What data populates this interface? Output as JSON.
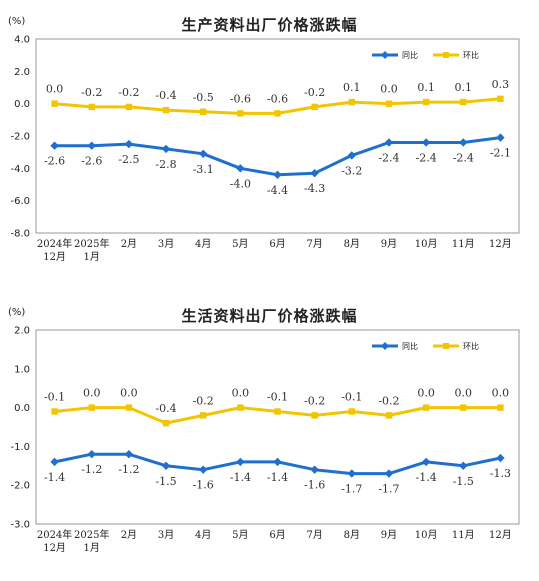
{
  "chart_data": [
    {
      "type": "line",
      "title": "生产资料出厂价格涨跌幅",
      "ylabel": "(%)",
      "ylim": [
        -8.0,
        4.0
      ],
      "yticks": [
        "4.0",
        "2.0",
        "0.0",
        "-2.0",
        "-4.0",
        "-6.0",
        "-8.0"
      ],
      "grid": false,
      "legend_position": "top-right",
      "categories": [
        [
          "2024年",
          "12月"
        ],
        [
          "2025年",
          "1月"
        ],
        [
          "2月"
        ],
        [
          "3月"
        ],
        [
          "4月"
        ],
        [
          "5月"
        ],
        [
          "6月"
        ],
        [
          "7月"
        ],
        [
          "8月"
        ],
        [
          "9月"
        ],
        [
          "10月"
        ],
        [
          "11月"
        ],
        [
          "12月"
        ]
      ],
      "series": [
        {
          "name": "同比",
          "color": "#1F6FCF",
          "marker": "diamond",
          "values": [
            -2.6,
            -2.6,
            -2.5,
            -2.8,
            -3.1,
            -4.0,
            -4.4,
            -4.3,
            -3.2,
            -2.4,
            -2.4,
            -2.4,
            -2.1
          ],
          "labels": [
            "-2.6",
            "-2.6",
            "-2.5",
            "-2.8",
            "-3.1",
            "-4.0",
            "-4.4",
            "-4.3",
            "-3.2",
            "-2.4",
            "-2.4",
            "-2.4",
            "-2.1"
          ]
        },
        {
          "name": "环比",
          "color": "#F2C500",
          "marker": "square",
          "values": [
            0.0,
            -0.2,
            -0.2,
            -0.4,
            -0.5,
            -0.6,
            -0.6,
            -0.2,
            0.1,
            0.0,
            0.1,
            0.1,
            0.3
          ],
          "labels": [
            "0.0",
            "-0.2",
            "-0.2",
            "-0.4",
            "-0.5",
            "-0.6",
            "-0.6",
            "-0.2",
            "0.1",
            "0.0",
            "0.1",
            "0.1",
            "0.3"
          ]
        }
      ]
    },
    {
      "type": "line",
      "title": "生活资料出厂价格涨跌幅",
      "ylabel": "(%)",
      "ylim": [
        -3.0,
        2.0
      ],
      "yticks": [
        "2.0",
        "1.0",
        "0.0",
        "-1.0",
        "-2.0",
        "-3.0"
      ],
      "grid": false,
      "legend_position": "top-right",
      "categories": [
        [
          "2024年",
          "12月"
        ],
        [
          "2025年",
          "1月"
        ],
        [
          "2月"
        ],
        [
          "3月"
        ],
        [
          "4月"
        ],
        [
          "5月"
        ],
        [
          "6月"
        ],
        [
          "7月"
        ],
        [
          "8月"
        ],
        [
          "9月"
        ],
        [
          "10月"
        ],
        [
          "11月"
        ],
        [
          "12月"
        ]
      ],
      "series": [
        {
          "name": "同比",
          "color": "#1F6FCF",
          "marker": "diamond",
          "values": [
            -1.4,
            -1.2,
            -1.2,
            -1.5,
            -1.6,
            -1.4,
            -1.4,
            -1.6,
            -1.7,
            -1.7,
            -1.4,
            -1.5,
            -1.3
          ],
          "labels": [
            "-1.4",
            "-1.2",
            "-1.2",
            "-1.5",
            "-1.6",
            "-1.4",
            "-1.4",
            "-1.6",
            "-1.7",
            "-1.7",
            "-1.4",
            "-1.5",
            "-1.3"
          ]
        },
        {
          "name": "环比",
          "color": "#F2C500",
          "marker": "square",
          "values": [
            -0.1,
            0.0,
            0.0,
            -0.4,
            -0.2,
            0.0,
            -0.1,
            -0.2,
            -0.1,
            -0.2,
            0.0,
            0.0,
            0.0
          ],
          "labels": [
            "-0.1",
            "0.0",
            "0.0",
            "-0.4",
            "-0.2",
            "0.0",
            "-0.1",
            "-0.2",
            "-0.1",
            "-0.2",
            "0.0",
            "0.0",
            "0.0"
          ]
        }
      ]
    }
  ]
}
